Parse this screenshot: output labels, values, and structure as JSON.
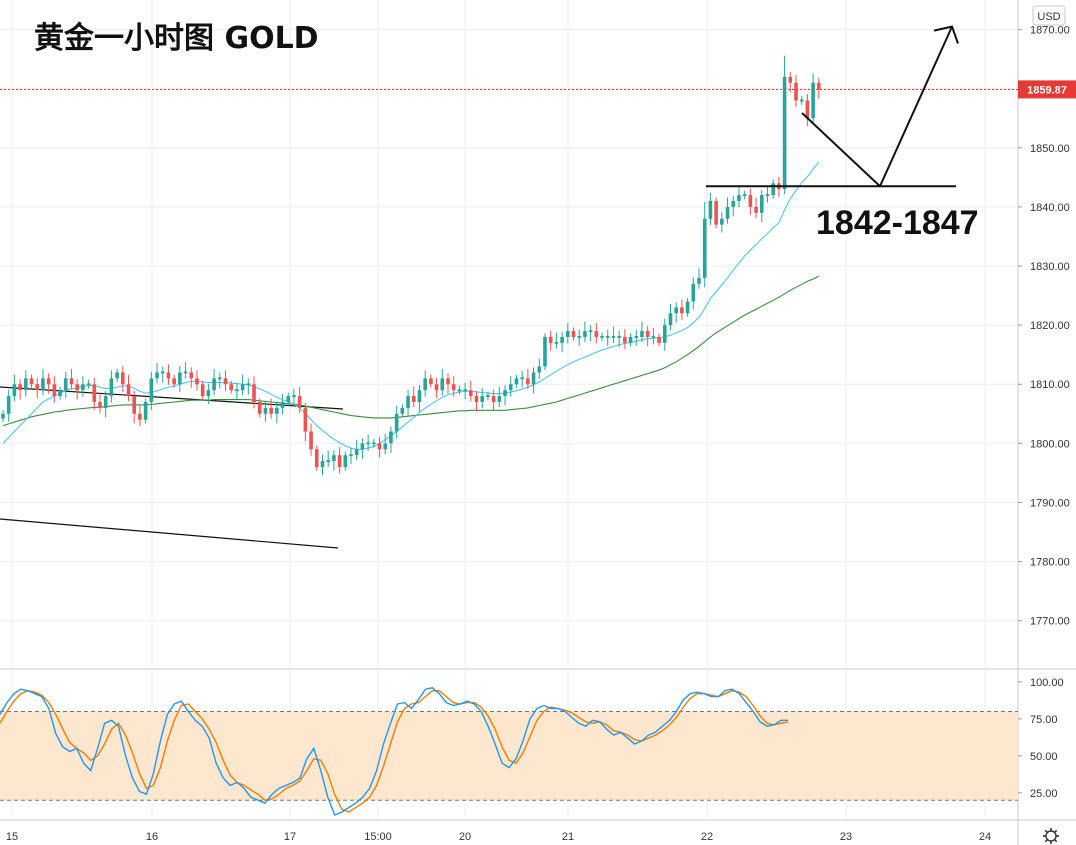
{
  "header": {
    "title": "黄金一小时图 GOLD"
  },
  "price_scale": {
    "currency": "USD",
    "last_price_label": "1859.87",
    "last_price_color": "#e53935"
  },
  "annotation": {
    "zone_label": "1842-1847"
  },
  "settings_icon": "gear-icon",
  "chart_data": [
    {
      "type": "candlestick",
      "x_tick_labels": [
        "15",
        "16",
        "17",
        "15:00",
        "20",
        "21",
        "22",
        "23",
        "24"
      ],
      "ylim": [
        1762,
        1875
      ],
      "y_ticks": [
        1770,
        1780,
        1790,
        1800,
        1810,
        1820,
        1830,
        1840,
        1850,
        1860,
        1870
      ],
      "y_tick_labels": [
        "1770.00",
        "1780.00",
        "1790.00",
        "1800.00",
        "1810.00",
        "1820.00",
        "1830.00",
        "1840.00",
        "1850.00",
        "1860.00",
        "1870.00"
      ],
      "grid": true,
      "up_color": "#26a69a",
      "down_color": "#ef5350",
      "last_price": 1859.87,
      "closes": [
        1805,
        1808,
        1810,
        1809,
        1811,
        1810,
        1809,
        1811,
        1810,
        1808,
        1809,
        1811,
        1810,
        1809,
        1810,
        1810,
        1807,
        1806,
        1808,
        1811,
        1812,
        1810,
        1808,
        1805,
        1804,
        1807,
        1811,
        1812,
        1812,
        1811,
        1810,
        1812,
        1812,
        1811,
        1810,
        1808,
        1809,
        1811,
        1811,
        1810,
        1809,
        1809,
        1810,
        1810,
        1807,
        1805,
        1806,
        1805,
        1806,
        1807,
        1808,
        1808,
        1806,
        1802,
        1799,
        1796,
        1797,
        1797,
        1798,
        1796,
        1798,
        1798,
        1799,
        1800,
        1800,
        1800,
        1799,
        1800,
        1802,
        1805,
        1806,
        1808,
        1807,
        1809,
        1811,
        1810,
        1809,
        1811,
        1810,
        1809,
        1809,
        1809,
        1808,
        1807,
        1808,
        1808,
        1807,
        1808,
        1809,
        1810,
        1811,
        1811,
        1810,
        1812,
        1813,
        1818,
        1817,
        1817,
        1818,
        1819,
        1818,
        1818,
        1819,
        1819,
        1818,
        1818,
        1818,
        1818,
        1818,
        1817,
        1818,
        1818,
        1819,
        1818,
        1818,
        1817,
        1820,
        1822,
        1823,
        1822,
        1824,
        1827,
        1828,
        1838,
        1841,
        1837,
        1838,
        1840,
        1841,
        1842,
        1842,
        1840,
        1839,
        1842,
        1842,
        1844,
        1843,
        1862,
        1861,
        1858,
        1858,
        1855,
        1861,
        1859.87
      ],
      "ma_fast": [
        1800,
        1801,
        1802,
        1803,
        1804,
        1805,
        1806,
        1807,
        1807.5,
        1808,
        1808.5,
        1809,
        1809.2,
        1809.4,
        1809.6,
        1809.8,
        1809.8,
        1809.5,
        1809.3,
        1809.3,
        1809.5,
        1809.7,
        1809.7,
        1809.3,
        1808.8,
        1808.5,
        1808.6,
        1808.9,
        1809.2,
        1809.5,
        1809.7,
        1810,
        1810.3,
        1810.5,
        1810.5,
        1810.4,
        1810.3,
        1810.3,
        1810.3,
        1810.3,
        1810.2,
        1810.1,
        1810,
        1809.9,
        1809.6,
        1809.2,
        1808.8,
        1808.3,
        1807.8,
        1807.4,
        1807,
        1806.6,
        1806,
        1805,
        1804,
        1803,
        1802.2,
        1801.4,
        1800.7,
        1800.1,
        1799.6,
        1799.2,
        1799,
        1799,
        1799.2,
        1799.5,
        1800,
        1800.6,
        1801.3,
        1802,
        1802.8,
        1803.6,
        1804.4,
        1805.2,
        1806,
        1806.6,
        1807.2,
        1807.8,
        1808.2,
        1808.5,
        1808.7,
        1808.8,
        1808.8,
        1808.7,
        1808.6,
        1808.5,
        1808.4,
        1808.4,
        1808.5,
        1808.7,
        1808.9,
        1809.2,
        1809.5,
        1809.9,
        1810.4,
        1811,
        1811.6,
        1812.2,
        1812.8,
        1813.3,
        1813.8,
        1814.2,
        1814.6,
        1815,
        1815.4,
        1815.8,
        1816.1,
        1816.4,
        1816.7,
        1816.9,
        1817.1,
        1817.3,
        1817.5,
        1817.7,
        1817.8,
        1817.9,
        1818,
        1818.3,
        1818.7,
        1819.1,
        1819.6,
        1820.4,
        1821.3,
        1822.8,
        1824.5,
        1825.6,
        1826.8,
        1828,
        1829.3,
        1830.5,
        1831.7,
        1832.7,
        1833.6,
        1834.6,
        1835.5,
        1836.5,
        1837.3,
        1839.5,
        1841.4,
        1842.8,
        1844.1,
        1845.1,
        1846.4,
        1847.6
      ],
      "ma_slow": [
        1803,
        1803.3,
        1803.6,
        1803.9,
        1804.2,
        1804.5,
        1804.7,
        1804.9,
        1805.1,
        1805.3,
        1805.4,
        1805.6,
        1805.7,
        1805.8,
        1805.9,
        1806,
        1806.1,
        1806.1,
        1806.2,
        1806.3,
        1806.4,
        1806.5,
        1806.5,
        1806.5,
        1806.5,
        1806.5,
        1806.6,
        1806.7,
        1806.8,
        1806.9,
        1807,
        1807.1,
        1807.2,
        1807.3,
        1807.3,
        1807.3,
        1807.3,
        1807.4,
        1807.4,
        1807.4,
        1807.4,
        1807.4,
        1807.4,
        1807.4,
        1807.3,
        1807.2,
        1807.1,
        1807,
        1806.9,
        1806.8,
        1806.7,
        1806.6,
        1806.5,
        1806.3,
        1806.1,
        1805.9,
        1805.7,
        1805.5,
        1805.3,
        1805.1,
        1804.9,
        1804.7,
        1804.6,
        1804.5,
        1804.4,
        1804.3,
        1804.3,
        1804.3,
        1804.3,
        1804.4,
        1804.5,
        1804.6,
        1804.7,
        1804.8,
        1804.9,
        1805,
        1805.1,
        1805.2,
        1805.3,
        1805.4,
        1805.5,
        1805.5,
        1805.6,
        1805.6,
        1805.6,
        1805.6,
        1805.6,
        1805.6,
        1805.6,
        1805.7,
        1805.8,
        1805.9,
        1806,
        1806.2,
        1806.4,
        1806.6,
        1806.8,
        1807,
        1807.3,
        1807.6,
        1807.9,
        1808.2,
        1808.5,
        1808.8,
        1809.1,
        1809.4,
        1809.7,
        1810,
        1810.3,
        1810.6,
        1810.9,
        1811.2,
        1811.5,
        1811.8,
        1812.1,
        1812.4,
        1812.8,
        1813.3,
        1813.8,
        1814.4,
        1815,
        1815.7,
        1816.4,
        1817.2,
        1818,
        1818.7,
        1819.3,
        1819.9,
        1820.5,
        1821.1,
        1821.7,
        1822.2,
        1822.7,
        1823.2,
        1823.7,
        1824.2,
        1824.7,
        1825.3,
        1825.9,
        1826.4,
        1826.9,
        1827.4,
        1827.8,
        1828.3
      ],
      "drawn_levels": {
        "support_zone": [
          1842,
          1847
        ],
        "support_line_price": 1843.5,
        "projected_low": 1843.5,
        "projected_high": 1870.5
      }
    },
    {
      "type": "line",
      "name": "stochastic",
      "y_ticks": [
        25,
        50,
        75,
        100
      ],
      "y_tick_labels": [
        "25.00",
        "50.00",
        "75.00",
        "100.00"
      ],
      "ylim": [
        8,
        108
      ],
      "band": [
        20,
        80
      ],
      "band_color": "#fde8cf",
      "k_color": "#2196f3",
      "d_color": "#f57c00",
      "k": [
        78,
        86,
        92,
        95,
        94,
        92,
        90,
        82,
        65,
        56,
        53,
        55,
        45,
        40,
        55,
        72,
        74,
        70,
        50,
        35,
        26,
        24,
        38,
        60,
        78,
        85,
        87,
        80,
        74,
        70,
        62,
        45,
        35,
        30,
        32,
        28,
        22,
        20,
        18,
        24,
        28,
        30,
        32,
        35,
        48,
        55,
        40,
        22,
        10,
        12,
        15,
        18,
        22,
        28,
        40,
        58,
        72,
        85,
        86,
        82,
        88,
        95,
        96,
        92,
        86,
        84,
        85,
        87,
        85,
        80,
        70,
        58,
        45,
        42,
        48,
        60,
        75,
        82,
        84,
        82,
        82,
        80,
        76,
        72,
        70,
        74,
        73,
        68,
        64,
        66,
        62,
        58,
        60,
        64,
        66,
        70,
        74,
        80,
        88,
        92,
        93,
        92,
        90,
        90,
        94,
        95,
        92,
        86,
        80,
        73,
        70,
        71,
        74,
        74
      ],
      "d": [
        72,
        80,
        87,
        92,
        94,
        93,
        91,
        86,
        78,
        68,
        59,
        55,
        52,
        47,
        50,
        58,
        68,
        72,
        64,
        52,
        38,
        28,
        30,
        42,
        60,
        74,
        84,
        85,
        80,
        75,
        68,
        59,
        47,
        37,
        32,
        30,
        27,
        24,
        20,
        21,
        24,
        28,
        30,
        33,
        40,
        48,
        47,
        38,
        24,
        14,
        12,
        15,
        18,
        22,
        30,
        43,
        58,
        73,
        82,
        85,
        86,
        90,
        94,
        94,
        90,
        86,
        85,
        86,
        86,
        83,
        77,
        68,
        56,
        47,
        45,
        52,
        63,
        74,
        80,
        83,
        82,
        81,
        79,
        76,
        73,
        72,
        73,
        71,
        67,
        66,
        64,
        61,
        60,
        62,
        64,
        67,
        71,
        76,
        83,
        89,
        92,
        92,
        91,
        90,
        92,
        94,
        93,
        90,
        84,
        77,
        72,
        71,
        72,
        73
      ]
    }
  ]
}
